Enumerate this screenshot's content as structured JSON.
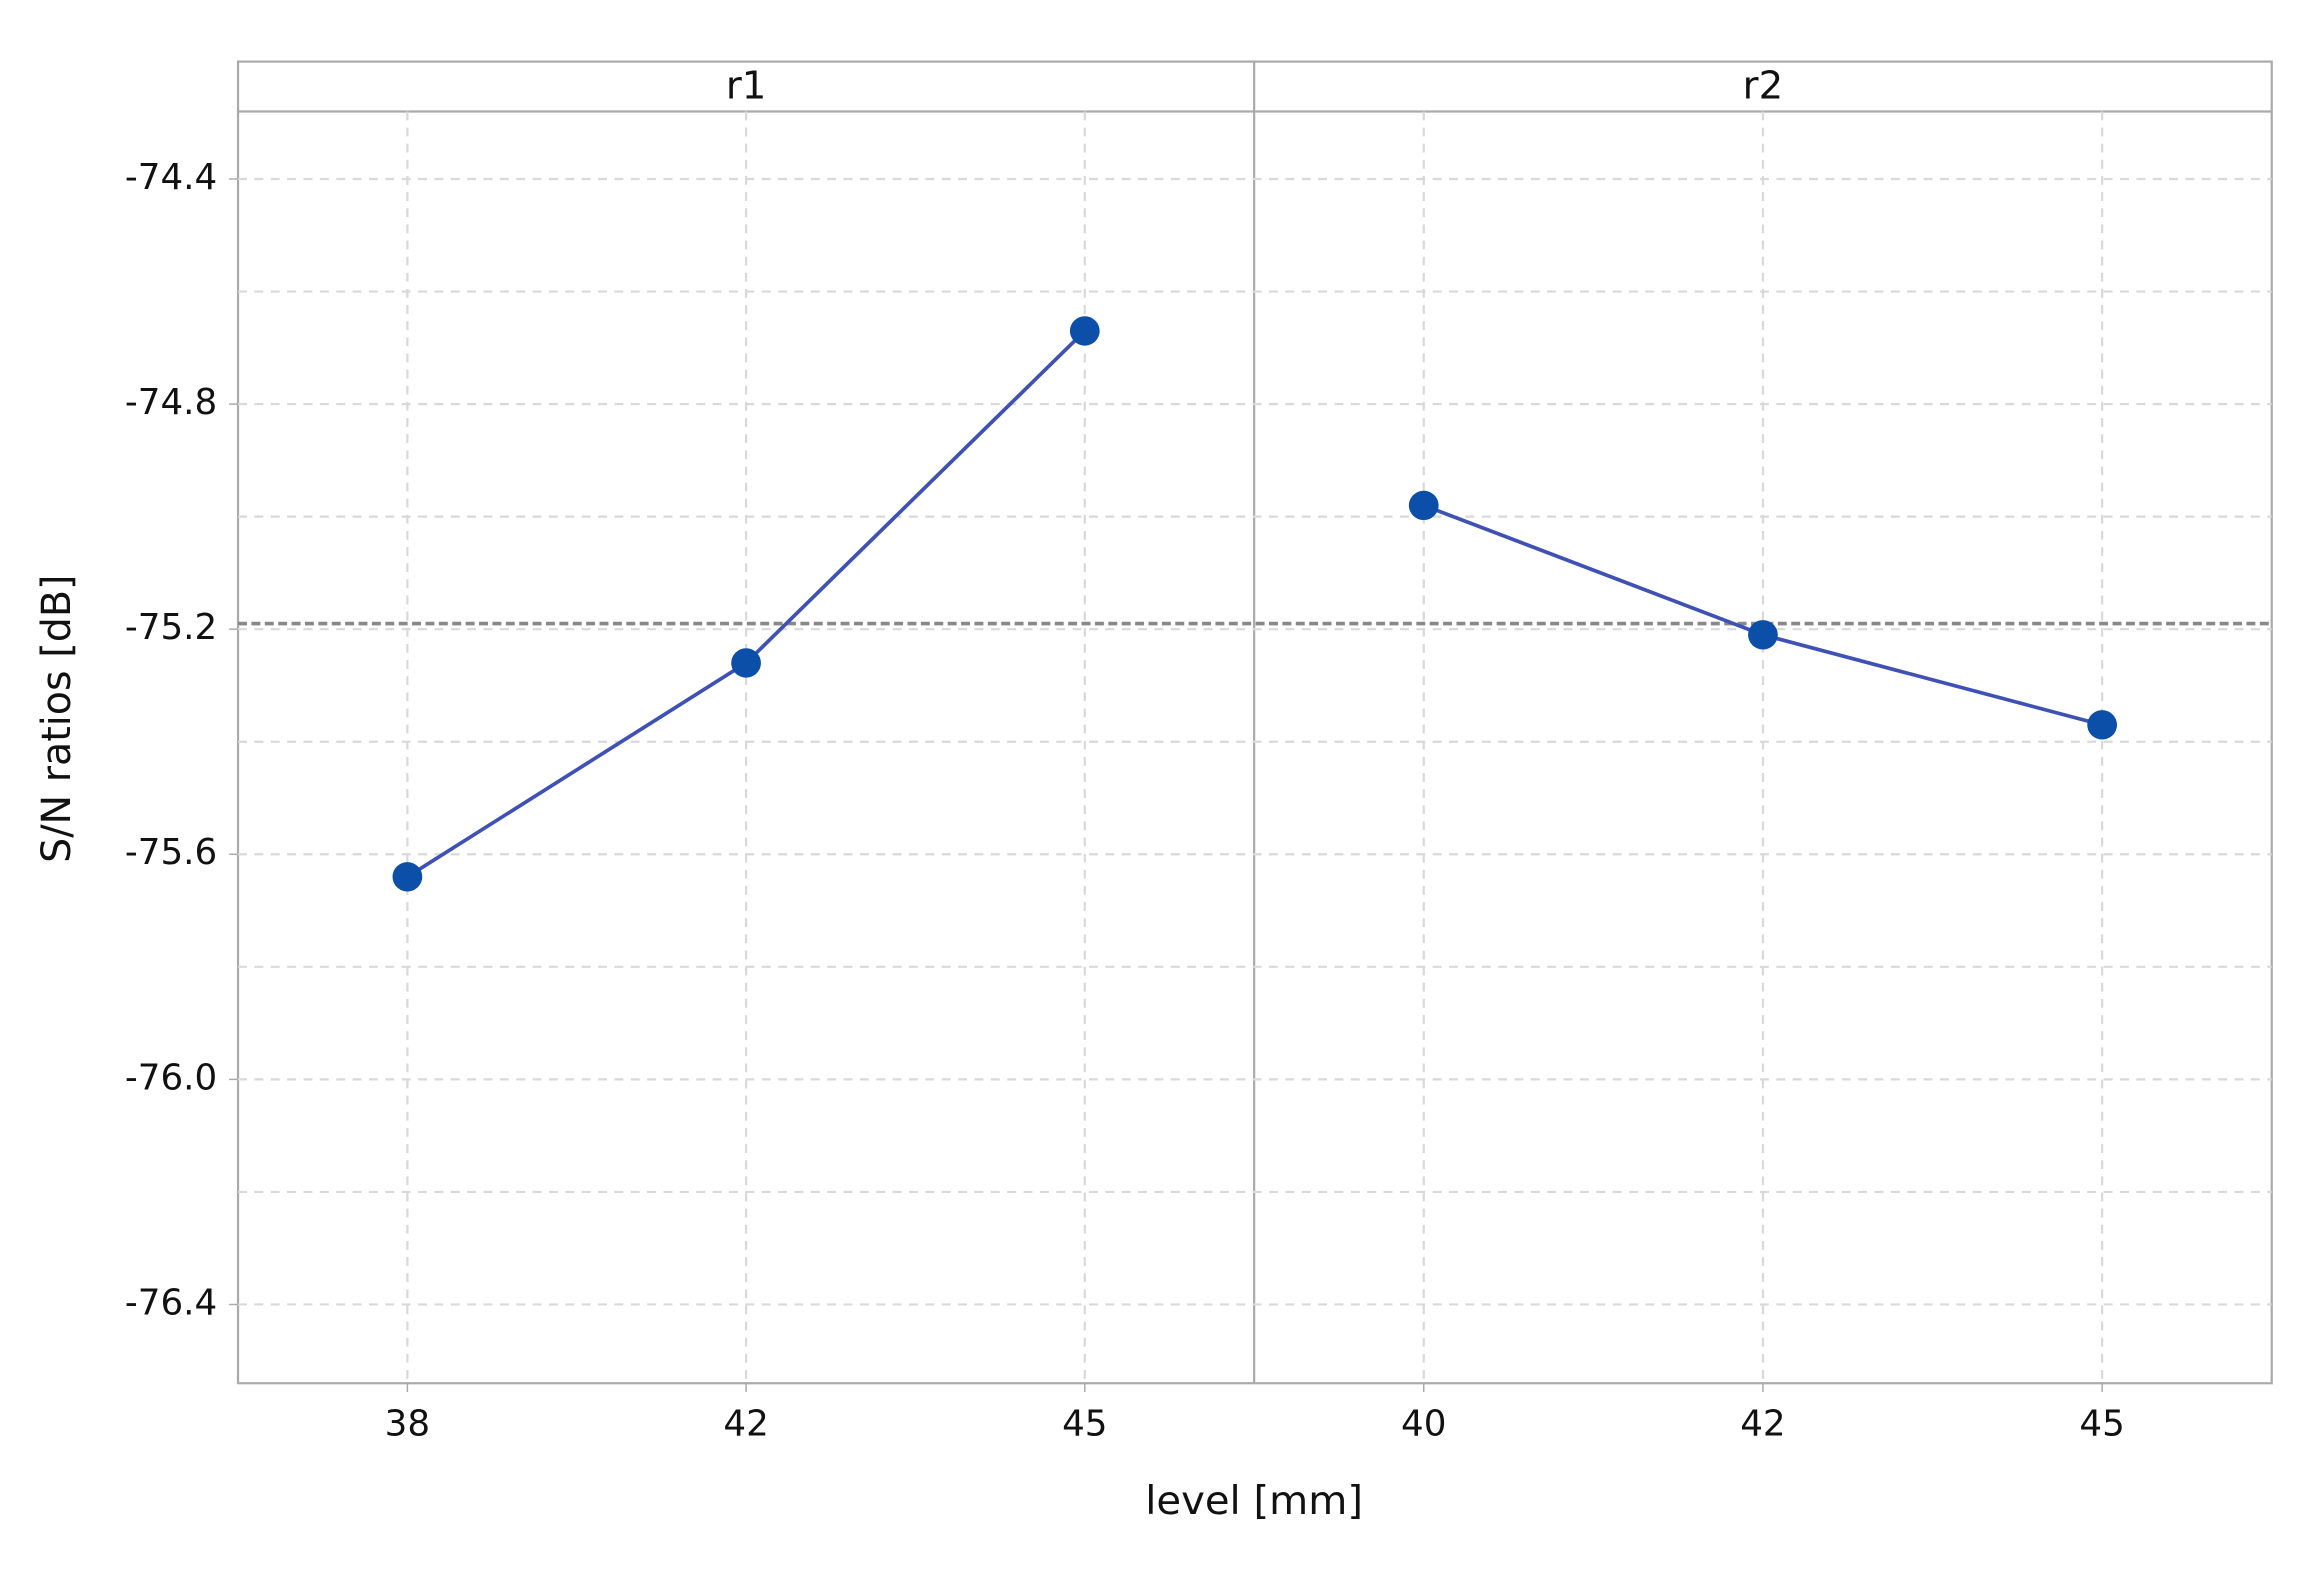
{
  "chart_data": {
    "type": "line",
    "ylabel": "S/N ratios [dB]",
    "xlabel": "level [mm]",
    "panels": [
      {
        "title": "r1",
        "categories": [
          "38",
          "42",
          "45"
        ],
        "values": [
          -75.64,
          -75.26,
          -74.67
        ]
      },
      {
        "title": "r2",
        "categories": [
          "40",
          "42",
          "45"
        ],
        "values": [
          -74.98,
          -75.21,
          -75.37
        ]
      }
    ],
    "line_color": "#3f51b5",
    "marker_color": "#0b4fa8",
    "ylim": [
      -76.54,
      -74.28
    ],
    "yticks": [
      -74.4,
      -74.8,
      -75.2,
      -75.6,
      {
        "value": -76,
        "label": "-76.0"
      },
      -76.4
    ],
    "minor_grid": [
      -74.6,
      -75.0,
      -75.4,
      -75.8,
      -76.2
    ],
    "reference_line": -75.19,
    "grid": true
  }
}
